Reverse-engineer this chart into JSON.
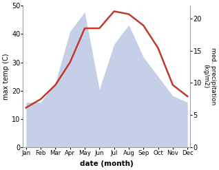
{
  "months": [
    "Jan",
    "Feb",
    "Mar",
    "Apr",
    "May",
    "Jun",
    "Jul",
    "Aug",
    "Sep",
    "Oct",
    "Nov",
    "Dec"
  ],
  "month_x": [
    0,
    1,
    2,
    3,
    4,
    5,
    6,
    7,
    8,
    9,
    10,
    11
  ],
  "temp": [
    14,
    17,
    22,
    30,
    42,
    42,
    48,
    47,
    43,
    35,
    22,
    18
  ],
  "precip": [
    7,
    7,
    10,
    18,
    21,
    9,
    16,
    19,
    14,
    11,
    8,
    7
  ],
  "temp_color": "#c0392b",
  "precip_color": "#c5d0e8",
  "left_ylim": [
    0,
    50
  ],
  "right_ylim": [
    0,
    22
  ],
  "left_yticks": [
    0,
    10,
    20,
    30,
    40,
    50
  ],
  "right_yticks": [
    0,
    5,
    10,
    15,
    20
  ],
  "xlabel": "date (month)",
  "ylabel_left": "max temp (C)",
  "ylabel_right": "med. precipitation\n(kg/m2)",
  "bg_color": "#ffffff"
}
